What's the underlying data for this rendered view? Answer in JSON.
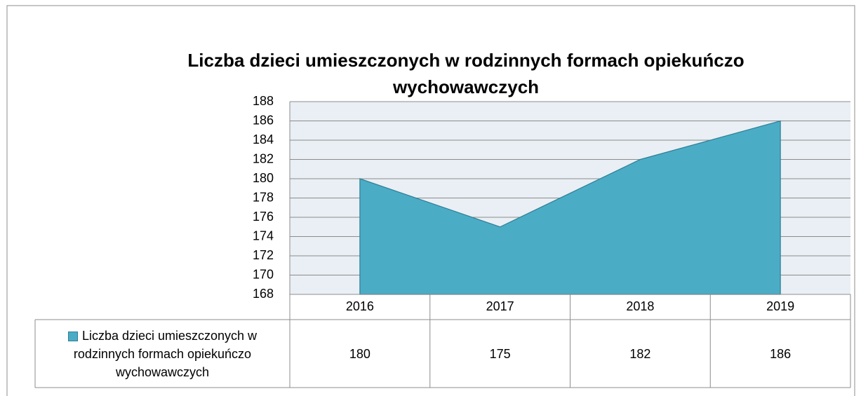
{
  "chart_data": {
    "type": "area",
    "title": "Liczba dzieci umieszczonych w rodzinnych formach opiekuńczo wychowawczych",
    "categories": [
      "2016",
      "2017",
      "2018",
      "2019"
    ],
    "series": [
      {
        "name": "Liczba dzieci umieszczonych w rodzinnych formach opiekuńczo wychowawczych",
        "color": "#4bacc6",
        "values": [
          180,
          175,
          182,
          186
        ]
      }
    ],
    "ylim": [
      168,
      188
    ],
    "yticks": [
      168,
      170,
      172,
      174,
      176,
      178,
      180,
      182,
      184,
      186,
      188
    ],
    "grid": true,
    "data_table": true
  }
}
